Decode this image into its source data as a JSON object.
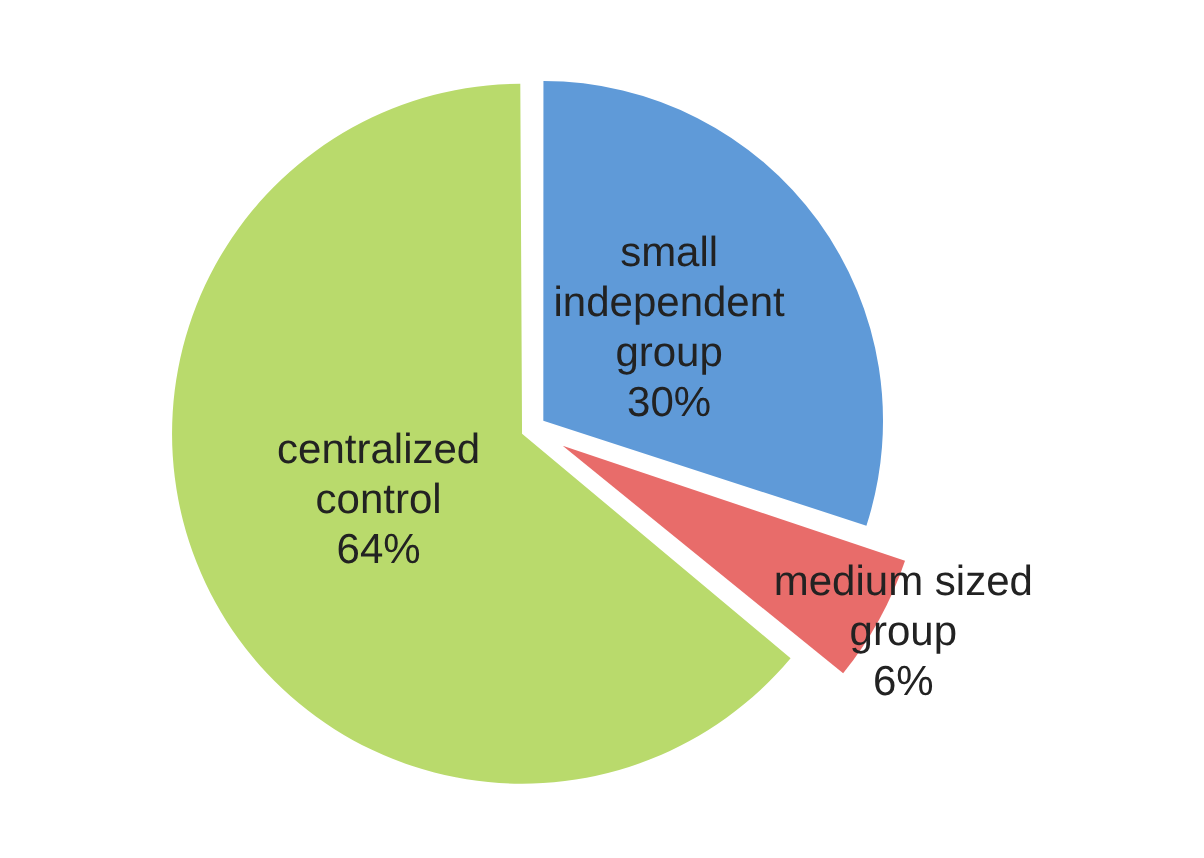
{
  "chart_data": {
    "type": "pie",
    "categories": [
      "small independent group",
      "medium sized group",
      "centralized control"
    ],
    "values": [
      30,
      6,
      64
    ],
    "colors": [
      "#5f9ad8",
      "#e86c6a",
      "#b9da6c"
    ],
    "value_labels": [
      "30%",
      "6%",
      "64%"
    ],
    "legend": false
  }
}
